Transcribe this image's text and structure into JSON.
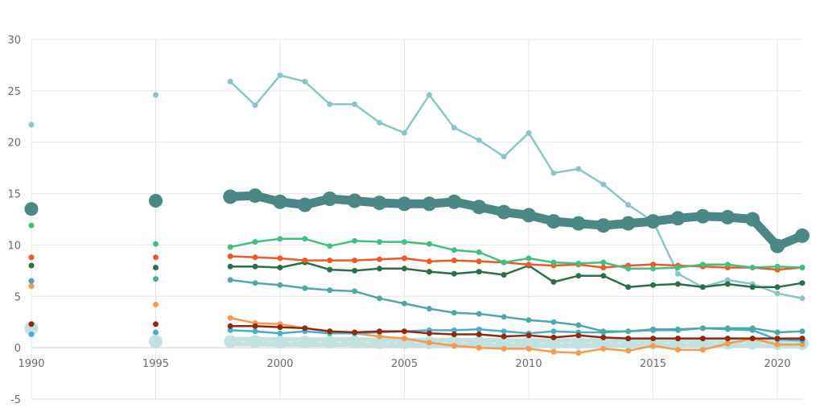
{
  "chart_data": {
    "type": "line",
    "title": "",
    "xlabel": "",
    "ylabel": "",
    "xlim": [
      1990,
      2021
    ],
    "ylim": [
      -5,
      30
    ],
    "grid": true,
    "legend": "none",
    "x_ticks": [
      "1990",
      "1995",
      "2000",
      "2005",
      "2010",
      "2015",
      "2020"
    ],
    "y_ticks": [
      "-5",
      "0",
      "5",
      "10",
      "15",
      "20",
      "25",
      "30"
    ],
    "x": [
      1990,
      1995,
      1998,
      1999,
      2000,
      2001,
      2002,
      2003,
      2004,
      2005,
      2006,
      2007,
      2008,
      2009,
      2010,
      2011,
      2012,
      2013,
      2014,
      2015,
      2016,
      2017,
      2018,
      2019,
      2020,
      2021
    ],
    "series": [
      {
        "name": "series-light-teal",
        "color": "#8cc6c4",
        "weight": "thin",
        "values": [
          21.7,
          24.6,
          25.9,
          23.6,
          26.5,
          25.9,
          23.7,
          23.7,
          21.9,
          20.9,
          24.6,
          21.4,
          20.2,
          18.6,
          20.9,
          17.0,
          17.4,
          15.9,
          13.9,
          12.3,
          7.2,
          5.9,
          6.6,
          6.2,
          5.3,
          4.8
        ]
      },
      {
        "name": "series-total",
        "color": "#4a8785",
        "weight": "thick",
        "values": [
          13.5,
          14.3,
          14.7,
          14.8,
          14.2,
          13.9,
          14.5,
          14.3,
          14.1,
          14.0,
          14.0,
          14.2,
          13.7,
          13.2,
          12.9,
          12.3,
          12.1,
          11.9,
          12.1,
          12.3,
          12.6,
          12.8,
          12.7,
          12.5,
          9.9,
          10.9
        ]
      },
      {
        "name": "series-green",
        "color": "#45bf80",
        "weight": "thin",
        "values": [
          11.9,
          10.1,
          9.8,
          10.3,
          10.6,
          10.6,
          9.9,
          10.4,
          10.3,
          10.3,
          10.1,
          9.5,
          9.3,
          8.3,
          8.7,
          8.3,
          8.2,
          8.3,
          7.7,
          7.7,
          7.8,
          8.1,
          8.1,
          7.8,
          7.9,
          7.8
        ]
      },
      {
        "name": "series-orange-red",
        "color": "#f0582a",
        "weight": "thin",
        "values": [
          8.8,
          8.8,
          8.9,
          8.8,
          8.7,
          8.5,
          8.5,
          8.5,
          8.6,
          8.7,
          8.4,
          8.5,
          8.4,
          8.3,
          8.1,
          8.0,
          8.1,
          7.8,
          8.0,
          8.1,
          8.0,
          7.9,
          7.8,
          7.8,
          7.6,
          7.8
        ]
      },
      {
        "name": "series-dark-green",
        "color": "#2a6e4a",
        "weight": "thin",
        "values": [
          8.0,
          7.8,
          7.9,
          7.9,
          7.8,
          8.3,
          7.6,
          7.5,
          7.7,
          7.7,
          7.4,
          7.2,
          7.4,
          7.1,
          8.0,
          6.4,
          7.0,
          7.0,
          5.9,
          6.1,
          6.2,
          5.9,
          6.2,
          5.9,
          5.9,
          6.3
        ]
      },
      {
        "name": "series-mid-teal",
        "color": "#4fa8a6",
        "weight": "thin",
        "values": [
          6.5,
          6.7,
          6.6,
          6.3,
          6.1,
          5.8,
          5.6,
          5.5,
          4.8,
          4.3,
          3.8,
          3.4,
          3.3,
          3.0,
          2.7,
          2.5,
          2.2,
          1.6,
          1.6,
          1.8,
          1.8,
          1.9,
          1.9,
          1.9,
          1.5,
          1.6
        ]
      },
      {
        "name": "series-orange",
        "color": "#f59a4e",
        "weight": "thin",
        "values": [
          6.0,
          4.2,
          2.9,
          2.4,
          2.3,
          1.9,
          1.6,
          1.4,
          1.1,
          0.9,
          0.5,
          0.2,
          0.0,
          -0.1,
          -0.1,
          -0.4,
          -0.5,
          -0.1,
          -0.3,
          0.2,
          -0.2,
          -0.2,
          0.4,
          0.9,
          0.3,
          0.3
        ]
      },
      {
        "name": "series-dark-red",
        "color": "#8f2a0e",
        "weight": "thin",
        "values": [
          2.3,
          2.3,
          2.1,
          2.1,
          2.0,
          1.9,
          1.6,
          1.5,
          1.6,
          1.6,
          1.4,
          1.3,
          1.3,
          1.1,
          1.2,
          1.0,
          1.2,
          1.0,
          0.9,
          0.9,
          0.9,
          0.9,
          0.9,
          0.9,
          0.9,
          0.9
        ]
      },
      {
        "name": "series-blue",
        "color": "#47afcc",
        "weight": "thin",
        "values": [
          1.3,
          1.5,
          1.7,
          1.6,
          1.4,
          1.6,
          1.4,
          1.4,
          1.5,
          1.6,
          1.7,
          1.7,
          1.8,
          1.6,
          1.4,
          1.6,
          1.5,
          1.5,
          1.6,
          1.7,
          1.7,
          1.9,
          1.8,
          1.7,
          0.8,
          0.7
        ]
      },
      {
        "name": "series-pale",
        "color": "#c2e1e0",
        "weight": "thick",
        "values": [
          1.9,
          0.6,
          0.6,
          0.6,
          0.55,
          0.55,
          0.55,
          0.55,
          0.5,
          0.5,
          0.5,
          0.5,
          0.5,
          0.45,
          0.45,
          0.45,
          0.45,
          0.45,
          0.45,
          0.45,
          0.45,
          0.45,
          0.45,
          0.45,
          0.4,
          0.4
        ]
      }
    ]
  }
}
